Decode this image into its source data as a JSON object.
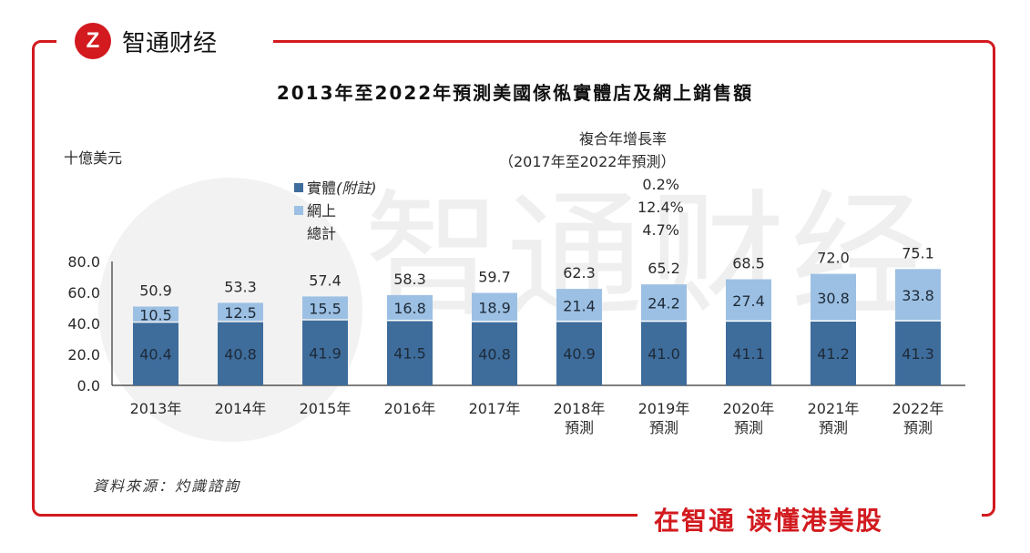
{
  "brand": {
    "logo_glyph": "Z",
    "name": "智通财经",
    "slogan": "在智通  读懂港美股",
    "watermark": "智通财经",
    "color": "#d21a1f"
  },
  "chart_data": {
    "type": "bar",
    "stacked": true,
    "title": "2013年至2022年預測美國傢俬實體店及網上銷售額",
    "ylabel": "十億美元",
    "ylim": [
      0,
      80
    ],
    "yticks": [
      "0.0",
      "20.0",
      "40.0",
      "60.0",
      "80.0"
    ],
    "categories": [
      [
        "2013年"
      ],
      [
        "2014年"
      ],
      [
        "2015年"
      ],
      [
        "2016年"
      ],
      [
        "2017年"
      ],
      [
        "2018年",
        "預測"
      ],
      [
        "2019年",
        "預測"
      ],
      [
        "2020年",
        "預測"
      ],
      [
        "2021年",
        "預測"
      ],
      [
        "2022年",
        "預測"
      ]
    ],
    "series": [
      {
        "name": "實體",
        "note": "(附註)",
        "color": "#3e6d9c",
        "cagr": "0.2%",
        "values": [
          40.4,
          40.8,
          41.9,
          41.5,
          40.8,
          40.9,
          41.0,
          41.1,
          41.2,
          41.3
        ]
      },
      {
        "name": "網上",
        "color": "#9cc0e3",
        "cagr": "12.4%",
        "values": [
          10.5,
          12.5,
          15.5,
          16.8,
          18.9,
          21.4,
          24.2,
          27.4,
          30.8,
          33.8
        ]
      }
    ],
    "totals": {
      "name": "總計",
      "cagr": "4.7%",
      "values": [
        50.9,
        53.3,
        57.4,
        58.3,
        59.7,
        62.3,
        65.2,
        68.5,
        72.0,
        75.1
      ]
    },
    "cagr_header": "複合年增長率",
    "cagr_period": "（2017年至2022年預測）"
  },
  "source": "資料來源：灼識諮詢"
}
